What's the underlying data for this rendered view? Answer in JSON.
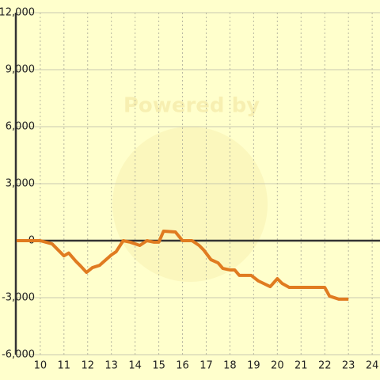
{
  "chart_data": {
    "type": "line",
    "watermark": "Powered by",
    "x": [
      9.0,
      10.0,
      10.5,
      11.0,
      11.2,
      11.5,
      11.7,
      11.95,
      12.2,
      12.5,
      13.0,
      13.2,
      13.5,
      13.8,
      14.2,
      14.5,
      14.8,
      15.0,
      15.2,
      15.7,
      16.0,
      16.4,
      16.7,
      16.9,
      17.2,
      17.5,
      17.7,
      18.0,
      18.2,
      18.4,
      18.9,
      19.2,
      19.7,
      20.0,
      20.2,
      20.5,
      22.0,
      22.2,
      22.6,
      23.0
    ],
    "series": [
      {
        "color": "#e07b20",
        "values": [
          0,
          0,
          -170,
          -800,
          -650,
          -1080,
          -1330,
          -1670,
          -1420,
          -1300,
          -750,
          -580,
          0,
          -80,
          -250,
          0,
          -80,
          -80,
          500,
          460,
          0,
          0,
          -250,
          -500,
          -1000,
          -1170,
          -1460,
          -1540,
          -1540,
          -1830,
          -1830,
          -2120,
          -2420,
          -2000,
          -2250,
          -2460,
          -2460,
          -2920,
          -3080,
          -3080
        ]
      }
    ],
    "xlim": [
      8.97,
      24.33
    ],
    "ylim": [
      -6000,
      12000
    ],
    "xticks": [
      10,
      11,
      12,
      13,
      14,
      15,
      16,
      17,
      18,
      19,
      20,
      21,
      22,
      23,
      24
    ],
    "yticks": [
      {
        "value": -6000,
        "label": "-6,000"
      },
      {
        "value": -3000,
        "label": "-3,000"
      },
      0,
      {
        "value": 3000,
        "label": "3,000"
      },
      {
        "value": 6000,
        "label": "6,000"
      },
      {
        "value": 9000,
        "label": "9,000"
      },
      {
        "value": 12000,
        "label": "12,000"
      }
    ],
    "grid": true
  }
}
